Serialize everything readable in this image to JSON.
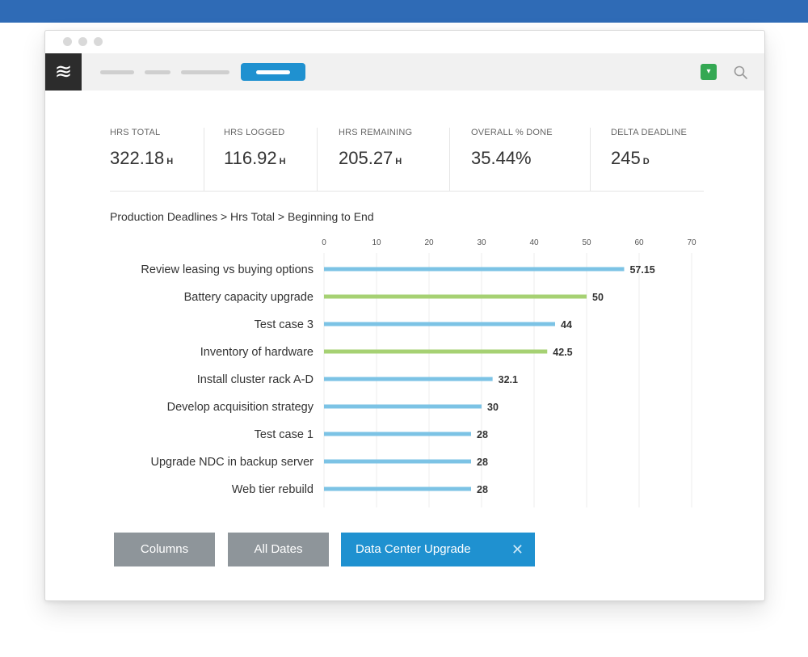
{
  "colors": {
    "blue_bar": "#7cc3e5",
    "green_bar": "#a6d173",
    "accent": "#1f91d0"
  },
  "toolbar": {
    "logo_glyph": "≋",
    "status_glyph": "▾"
  },
  "stats": [
    {
      "label": "HRS TOTAL",
      "value": "322.18",
      "unit": "H"
    },
    {
      "label": "HRS LOGGED",
      "value": "116.92",
      "unit": "H"
    },
    {
      "label": "HRS REMAINING",
      "value": "205.27",
      "unit": "H"
    },
    {
      "label": "OVERALL % DONE",
      "value": "35.44%",
      "unit": ""
    },
    {
      "label": "DELTA DEADLINE",
      "value": "245",
      "unit": "D"
    }
  ],
  "breadcrumb": "Production Deadlines > Hrs Total > Beginning to End",
  "chart_data": {
    "type": "bar",
    "orientation": "horizontal",
    "categories": [
      "Review leasing vs buying options",
      "Battery capacity upgrade",
      "Test case 3",
      "Inventory of hardware",
      "Install cluster rack A-D",
      "Develop acquisition strategy",
      "Test case 1",
      "Upgrade NDC in backup server",
      "Web tier rebuild"
    ],
    "values": [
      57.15,
      50,
      44,
      42.5,
      32.1,
      30,
      28,
      28,
      28
    ],
    "value_labels": [
      "57.15",
      "50",
      "44",
      "42.5",
      "32.1",
      "30",
      "28",
      "28",
      "28"
    ],
    "bar_colors": [
      "blue",
      "green",
      "blue",
      "green",
      "blue",
      "blue",
      "blue",
      "blue",
      "blue"
    ],
    "xlim": [
      0,
      70
    ],
    "xticks": [
      0,
      10,
      20,
      30,
      40,
      50,
      60,
      70
    ],
    "grid": true
  },
  "filters": {
    "columns_label": "Columns",
    "dates_label": "All Dates",
    "project_label": "Data Center Upgrade",
    "remove_glyph": "✕"
  }
}
